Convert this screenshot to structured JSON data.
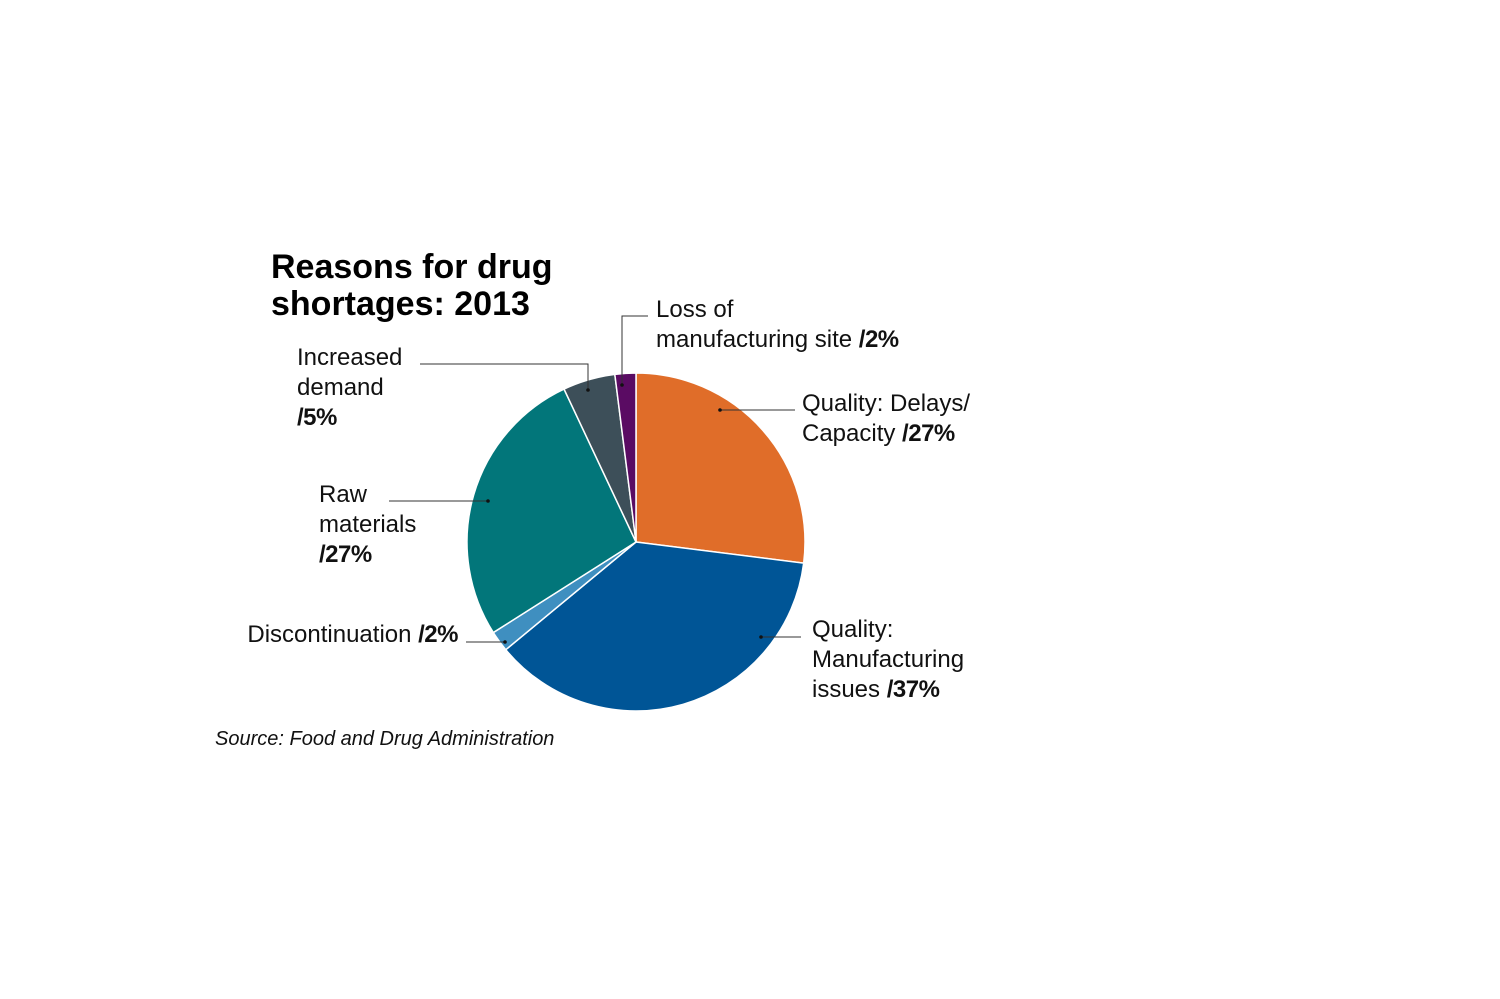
{
  "chart_data": {
    "type": "pie",
    "title": "Reasons for drug shortages: 2013",
    "title_lines": [
      "Reasons for drug",
      "shortages: 2013"
    ],
    "source": "Source: Food and Drug Administration",
    "slices": [
      {
        "name": "Quality: Delays/ Capacity",
        "label_lines": [
          "Quality: Delays/",
          "Capacity "
        ],
        "value": 27,
        "value_label": "/27%",
        "color": "#e06d29"
      },
      {
        "name": "Quality: Manufacturing issues",
        "label_lines": [
          "Quality:",
          "Manufacturing",
          "issues "
        ],
        "value": 37,
        "value_label": "/37%",
        "color": "#005596"
      },
      {
        "name": "Discontinuation",
        "label_lines": [
          "Discontinuation "
        ],
        "value": 2,
        "value_label": "/2%",
        "color": "#3f8fc0"
      },
      {
        "name": "Raw materials",
        "label_lines": [
          "Raw",
          "materials",
          ""
        ],
        "value": 27,
        "value_label": "/27%",
        "color": "#02767a"
      },
      {
        "name": "Increased demand",
        "label_lines": [
          "Increased",
          "demand",
          ""
        ],
        "value": 5,
        "value_label": "/5%",
        "color": "#3d4f59"
      },
      {
        "name": "Loss of manufacturing site",
        "label_lines": [
          "Loss of",
          "manufacturing site "
        ],
        "value": 2,
        "value_label": "/2%",
        "color": "#5a0b63"
      }
    ]
  }
}
